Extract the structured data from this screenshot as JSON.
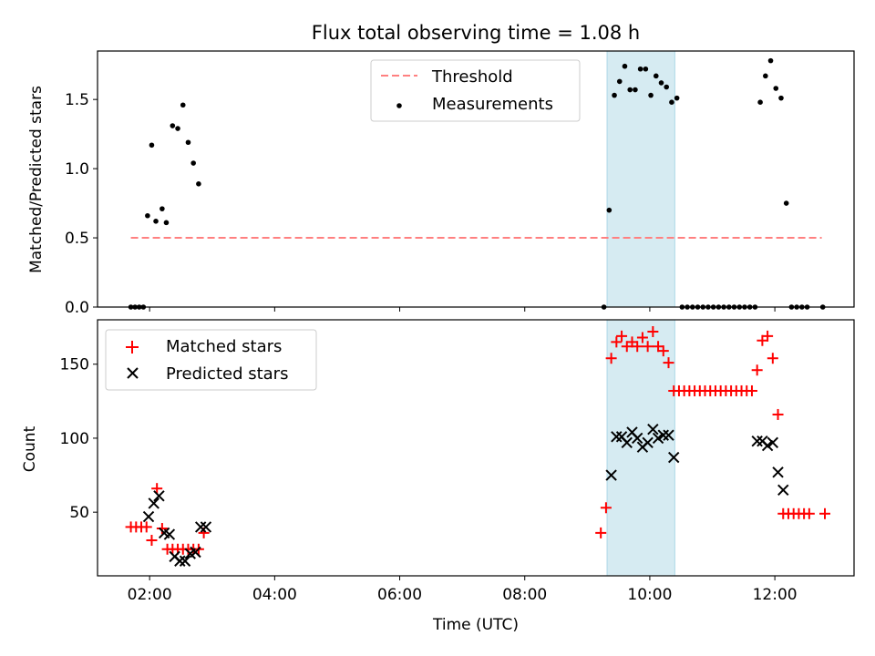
{
  "chart_data": [
    {
      "type": "scatter",
      "title": "Flux total observing time = 1.08 h",
      "xlabel": "",
      "ylabel": "Matched/Predicted stars",
      "xlim": [
        "01:10",
        "13:16"
      ],
      "ylim": [
        0,
        1.85
      ],
      "yticks": [
        "0.0",
        "0.5",
        "1.0",
        "1.5"
      ],
      "yticks_values": [
        0,
        0.5,
        1.0,
        1.5
      ],
      "legend_position": "upper center",
      "shaded_interval": [
        "09:19",
        "10:24"
      ],
      "series": [
        {
          "name": "Threshold",
          "style": "dashed-line",
          "color": "#ff8080",
          "x": [
            "01:42",
            "12:45"
          ],
          "y": [
            0.5,
            0.5
          ]
        },
        {
          "name": "Measurements",
          "style": "dot",
          "color": "#000000",
          "x": [
            "01:42",
            "01:46",
            "01:50",
            "01:54",
            "01:58",
            "02:02",
            "02:06",
            "02:12",
            "02:16",
            "02:22",
            "02:27",
            "02:32",
            "02:37",
            "02:42",
            "02:47",
            "09:16",
            "09:21",
            "09:26",
            "09:31",
            "09:36",
            "09:41",
            "09:46",
            "09:51",
            "09:56",
            "10:01",
            "10:06",
            "10:11",
            "10:16",
            "10:21",
            "10:26",
            "10:31",
            "10:36",
            "10:41",
            "10:46",
            "10:51",
            "10:56",
            "11:01",
            "11:06",
            "11:11",
            "11:16",
            "11:21",
            "11:26",
            "11:31",
            "11:36",
            "11:41",
            "11:46",
            "11:51",
            "11:56",
            "12:01",
            "12:06",
            "12:11",
            "12:16",
            "12:21",
            "12:26",
            "12:31",
            "12:46"
          ],
          "y": [
            0,
            0,
            0,
            0,
            0.66,
            1.17,
            0.62,
            0.71,
            0.61,
            1.31,
            1.29,
            1.46,
            1.19,
            1.04,
            0.89,
            0,
            0.7,
            1.53,
            1.63,
            1.74,
            1.57,
            1.57,
            1.72,
            1.72,
            1.53,
            1.67,
            1.62,
            1.59,
            1.48,
            1.51,
            0,
            0,
            0,
            0,
            0,
            0,
            0,
            0,
            0,
            0,
            0,
            0,
            0,
            0,
            0,
            1.48,
            1.67,
            1.78,
            1.58,
            1.51,
            0.75,
            0,
            0,
            0,
            0,
            0
          ]
        }
      ]
    },
    {
      "type": "scatter",
      "title": "",
      "xlabel": "Time (UTC)",
      "ylabel": "Count",
      "xlim": [
        "01:10",
        "13:16"
      ],
      "xticks": [
        "02:00",
        "04:00",
        "06:00",
        "08:00",
        "10:00",
        "12:00"
      ],
      "ylim": [
        7,
        180
      ],
      "yticks": [
        "50",
        "100",
        "150"
      ],
      "yticks_values": [
        50,
        100,
        150
      ],
      "legend_position": "upper left",
      "shaded_interval": [
        "09:19",
        "10:24"
      ],
      "series": [
        {
          "name": "Matched stars",
          "style": "plus",
          "color": "#ff0000",
          "x": [
            "01:42",
            "01:47",
            "01:52",
            "01:57",
            "02:02",
            "02:07",
            "02:12",
            "02:17",
            "02:22",
            "02:27",
            "02:32",
            "02:37",
            "02:42",
            "02:47",
            "02:52",
            "09:13",
            "09:18",
            "09:23",
            "09:28",
            "09:33",
            "09:38",
            "09:43",
            "09:48",
            "09:53",
            "09:58",
            "10:03",
            "10:08",
            "10:13",
            "10:18",
            "10:23",
            "10:28",
            "10:33",
            "10:38",
            "10:43",
            "10:48",
            "10:53",
            "10:58",
            "11:03",
            "11:08",
            "11:13",
            "11:18",
            "11:23",
            "11:28",
            "11:33",
            "11:38",
            "11:43",
            "11:48",
            "11:53",
            "11:58",
            "12:03",
            "12:08",
            "12:13",
            "12:18",
            "12:23",
            "12:28",
            "12:33",
            "12:48"
          ],
          "y": [
            40,
            40,
            40,
            40,
            31,
            66,
            39,
            25,
            25,
            25,
            25,
            25,
            25,
            25,
            36,
            36,
            53,
            154,
            165,
            169,
            162,
            165,
            162,
            168,
            162,
            172,
            162,
            159,
            151,
            132,
            132,
            132,
            132,
            132,
            132,
            132,
            132,
            132,
            132,
            132,
            132,
            132,
            132,
            132,
            132,
            146,
            166,
            169,
            154,
            116,
            49,
            49,
            49,
            49,
            49,
            49,
            49
          ]
        },
        {
          "name": "Predicted stars",
          "style": "x",
          "color": "#000000",
          "x": [
            "01:59",
            "02:04",
            "02:09",
            "02:14",
            "02:19",
            "02:24",
            "02:29",
            "02:34",
            "02:39",
            "02:44",
            "02:49",
            "02:54",
            "09:23",
            "09:28",
            "09:33",
            "09:38",
            "09:43",
            "09:48",
            "09:53",
            "09:58",
            "10:03",
            "10:08",
            "10:13",
            "10:18",
            "10:23",
            "11:43",
            "11:48",
            "11:53",
            "11:58",
            "12:03",
            "12:08"
          ],
          "y": [
            47,
            56,
            61,
            36,
            35,
            20,
            17,
            17,
            22,
            23,
            40,
            40,
            75,
            101,
            101,
            97,
            104,
            100,
            94,
            97,
            106,
            100,
            102,
            102,
            87,
            98,
            98,
            95,
            97,
            77,
            65
          ]
        }
      ]
    }
  ]
}
